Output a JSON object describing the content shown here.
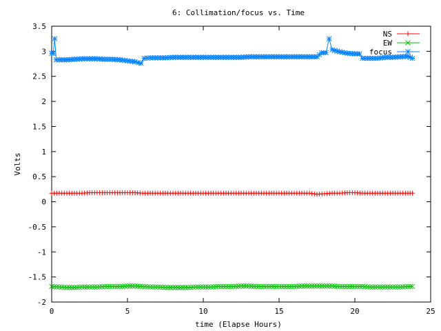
{
  "chart_data": {
    "type": "line",
    "title": "6: Collimation/focus vs. Time",
    "xlabel": "time (Elapse Hours)",
    "ylabel": "Volts",
    "xlim": [
      0,
      25
    ],
    "ylim": [
      -2,
      3.5
    ],
    "x_ticks": [
      0,
      5,
      10,
      15,
      20,
      25
    ],
    "x_tick_labels": [
      "0",
      "5",
      "10",
      "15",
      "20",
      "25"
    ],
    "y_ticks": [
      -2,
      -1.5,
      -1,
      -0.5,
      0,
      0.5,
      1,
      1.5,
      2,
      2.5,
      3,
      3.5
    ],
    "y_tick_labels": [
      "-2",
      "-1.5",
      "-1",
      "-0.5",
      "0",
      "0.5",
      "1",
      "1.5",
      "2",
      "2.5",
      "3",
      "3.5"
    ],
    "grid": false,
    "legend_position": "top-right",
    "series": [
      {
        "name": "NS",
        "color": "#ff0000",
        "marker": "plus",
        "x": [
          0,
          0.5,
          1,
          1.5,
          2,
          2.5,
          3,
          3.5,
          4,
          4.5,
          5,
          5.5,
          6,
          6.5,
          7,
          7.5,
          8,
          8.5,
          9,
          9.5,
          10,
          10.5,
          11,
          11.5,
          12,
          12.5,
          13,
          13.5,
          14,
          14.5,
          15,
          15.5,
          16,
          16.5,
          17,
          17.5,
          18,
          18.5,
          19,
          19.5,
          20,
          20.5,
          21,
          21.5,
          22,
          22.5,
          23,
          23.5,
          23.8
        ],
        "y": [
          0.17,
          0.17,
          0.17,
          0.17,
          0.17,
          0.18,
          0.18,
          0.18,
          0.18,
          0.18,
          0.18,
          0.18,
          0.17,
          0.17,
          0.17,
          0.17,
          0.17,
          0.17,
          0.17,
          0.17,
          0.17,
          0.17,
          0.17,
          0.17,
          0.17,
          0.17,
          0.17,
          0.17,
          0.17,
          0.17,
          0.17,
          0.17,
          0.17,
          0.17,
          0.17,
          0.15,
          0.16,
          0.17,
          0.17,
          0.18,
          0.18,
          0.17,
          0.17,
          0.17,
          0.17,
          0.17,
          0.17,
          0.17,
          0.17
        ]
      },
      {
        "name": "EW",
        "color": "#00c000",
        "marker": "cross",
        "x": [
          0,
          0.5,
          1,
          1.5,
          2,
          2.5,
          3,
          3.5,
          4,
          4.5,
          5,
          5.5,
          6,
          6.5,
          7,
          7.5,
          8,
          8.5,
          9,
          9.5,
          10,
          10.5,
          11,
          11.5,
          12,
          12.5,
          13,
          13.5,
          14,
          14.5,
          15,
          15.5,
          16,
          16.5,
          17,
          17.5,
          18,
          18.5,
          19,
          19.5,
          20,
          20.5,
          21,
          21.5,
          22,
          22.5,
          23,
          23.5,
          23.8
        ],
        "y": [
          -1.69,
          -1.7,
          -1.71,
          -1.71,
          -1.7,
          -1.7,
          -1.7,
          -1.69,
          -1.69,
          -1.69,
          -1.68,
          -1.68,
          -1.69,
          -1.7,
          -1.7,
          -1.71,
          -1.71,
          -1.71,
          -1.71,
          -1.7,
          -1.7,
          -1.7,
          -1.69,
          -1.69,
          -1.69,
          -1.68,
          -1.68,
          -1.69,
          -1.69,
          -1.69,
          -1.69,
          -1.69,
          -1.69,
          -1.68,
          -1.68,
          -1.68,
          -1.68,
          -1.68,
          -1.69,
          -1.69,
          -1.69,
          -1.69,
          -1.7,
          -1.7,
          -1.7,
          -1.7,
          -1.7,
          -1.69,
          -1.69
        ]
      },
      {
        "name": "focus",
        "color": "#0080ff",
        "marker": "star",
        "x": [
          0,
          0.1,
          0.2,
          0.3,
          0.5,
          1,
          1.5,
          2,
          2.5,
          3,
          3.5,
          4,
          4.5,
          5,
          5.5,
          5.9,
          6.1,
          6.5,
          7,
          7.5,
          8,
          8.5,
          9,
          9.5,
          10,
          10.5,
          11,
          11.5,
          12,
          12.5,
          13,
          13.5,
          14,
          14.5,
          15,
          15.5,
          16,
          16.5,
          17,
          17.5,
          17.8,
          18.1,
          18.3,
          18.5,
          19,
          19.5,
          20,
          20.3,
          20.5,
          21,
          21.5,
          22,
          22.5,
          23,
          23.5,
          23.8
        ],
        "y": [
          2.96,
          2.96,
          3.25,
          2.83,
          2.83,
          2.83,
          2.84,
          2.85,
          2.85,
          2.85,
          2.84,
          2.84,
          2.83,
          2.81,
          2.79,
          2.76,
          2.86,
          2.87,
          2.87,
          2.87,
          2.88,
          2.88,
          2.88,
          2.88,
          2.88,
          2.88,
          2.88,
          2.88,
          2.88,
          2.88,
          2.89,
          2.89,
          2.89,
          2.89,
          2.89,
          2.89,
          2.89,
          2.89,
          2.89,
          2.89,
          2.97,
          2.97,
          3.25,
          3.03,
          2.99,
          2.96,
          2.95,
          2.95,
          2.86,
          2.86,
          2.86,
          2.88,
          2.88,
          2.89,
          2.9,
          2.86
        ]
      }
    ]
  }
}
